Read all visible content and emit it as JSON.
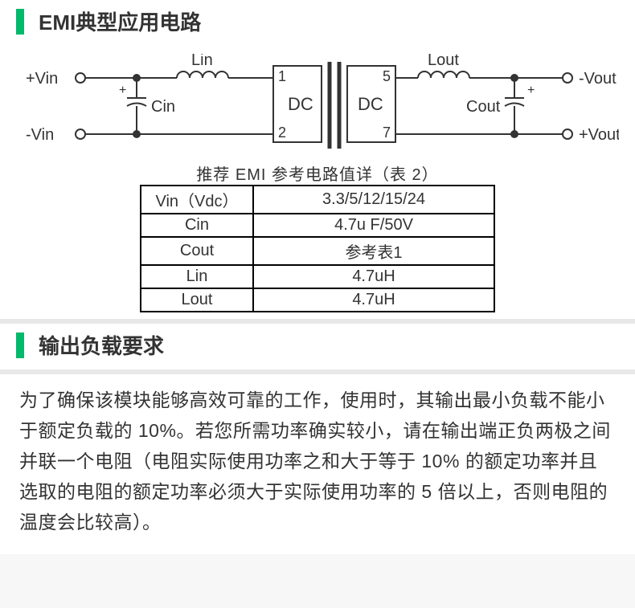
{
  "section1": {
    "title": "EMI典型应用电路"
  },
  "circuit": {
    "stroke_color": "#333333",
    "stroke_width": 2,
    "font_size": 20,
    "terminal_radius": 6,
    "node_radius": 4,
    "labels": {
      "vin_plus": "+Vin",
      "vin_minus": "-Vin",
      "vout_minus": "-Vout",
      "vout_plus": "+Vout",
      "lin": "Lin",
      "lout": "Lout",
      "cin": "Cin",
      "cout": "Cout",
      "dc_left": "DC",
      "dc_right": "DC",
      "pin1": "1",
      "pin2": "2",
      "pin5": "5",
      "pin7": "7",
      "plus": "+"
    }
  },
  "table": {
    "caption": "推荐 EMI 参考电路值详（表 2）",
    "rows": [
      {
        "param": "Vin（Vdc）",
        "value": "3.3/5/12/15/24"
      },
      {
        "param": "Cin",
        "value": "4.7u F/50V"
      },
      {
        "param": "Cout",
        "value": "参考表1"
      },
      {
        "param": "Lin",
        "value": "4.7uH"
      },
      {
        "param": "Lout",
        "value": "4.7uH"
      }
    ]
  },
  "section2": {
    "title": "输出负载要求"
  },
  "paragraph": "为了确保该模块能够高效可靠的工作，使用时，其输出最小负载不能小于额定负载的 10%。若您所需功率确实较小，请在输出端正负两极之间并联一个电阻（电阻实际使用功率之和大于等于 10% 的额定功率并且选取的电阻的额定功率必须大于实际使用功率的 5 倍以上，否则电阻的温度会比较高）。",
  "colors": {
    "accent": "#00b96b",
    "text": "#333333",
    "bg": "#f7f7f7"
  }
}
